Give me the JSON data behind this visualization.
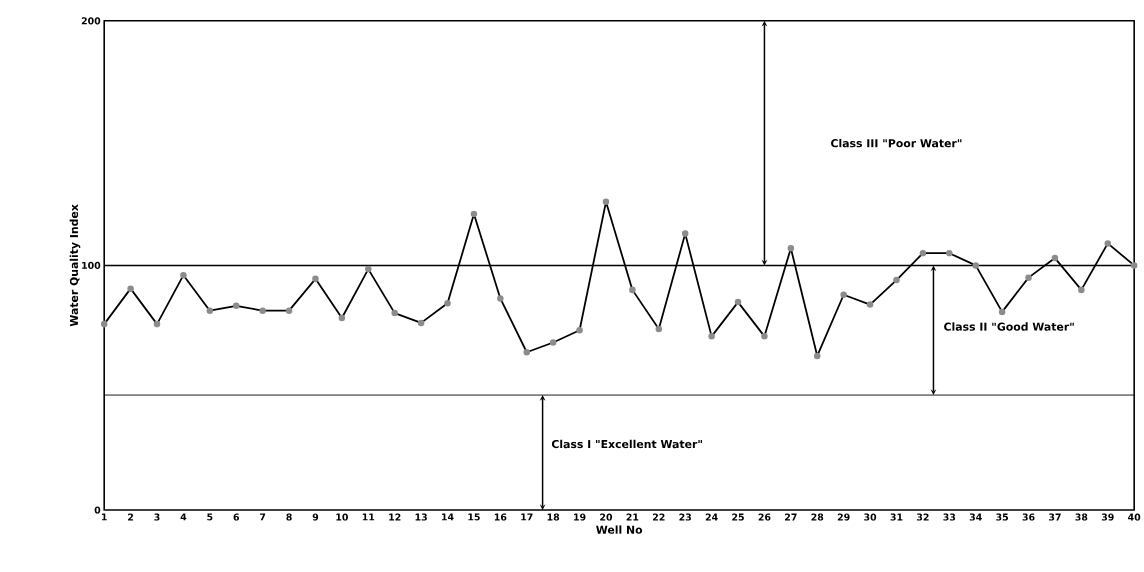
{
  "chart_data": {
    "type": "line",
    "xlabel": "Well No",
    "ylabel": "Water Quality Index",
    "categories": [
      "1",
      "2",
      "3",
      "4",
      "5",
      "6",
      "7",
      "8",
      "9",
      "10",
      "11",
      "12",
      "13",
      "14",
      "15",
      "16",
      "17",
      "18",
      "19",
      "20",
      "21",
      "22",
      "23",
      "24",
      "25",
      "26",
      "27",
      "28",
      "29",
      "30",
      "31",
      "32",
      "33",
      "34",
      "35",
      "36",
      "37",
      "38",
      "39",
      "40"
    ],
    "series": [
      {
        "color": "#000000",
        "values": [
          76,
          90.5,
          76,
          96,
          81.5,
          83.5,
          81.5,
          81.5,
          94.5,
          78.5,
          98.5,
          80.5,
          76.5,
          84.5,
          121,
          86.5,
          64.5,
          68.5,
          73.5,
          126,
          90,
          74,
          113,
          71,
          85,
          71,
          107,
          63,
          88,
          84,
          94,
          105,
          105,
          100,
          81,
          95,
          103,
          90,
          109,
          100
        ]
      }
    ],
    "ylim": [
      0,
      200
    ],
    "yticks": [
      0,
      100,
      200
    ],
    "grid": false,
    "marker": "circle",
    "line_style": "solid",
    "ref_lines": [
      {
        "axis": "y",
        "value": 100,
        "color": "#000000"
      },
      {
        "axis": "y",
        "value": 47,
        "color": "#000000"
      }
    ],
    "annotations": [
      "Class III  \"Poor Water\"",
      "Class II  \"Good Water\"",
      "Class I \"Excellent Water\""
    ]
  }
}
